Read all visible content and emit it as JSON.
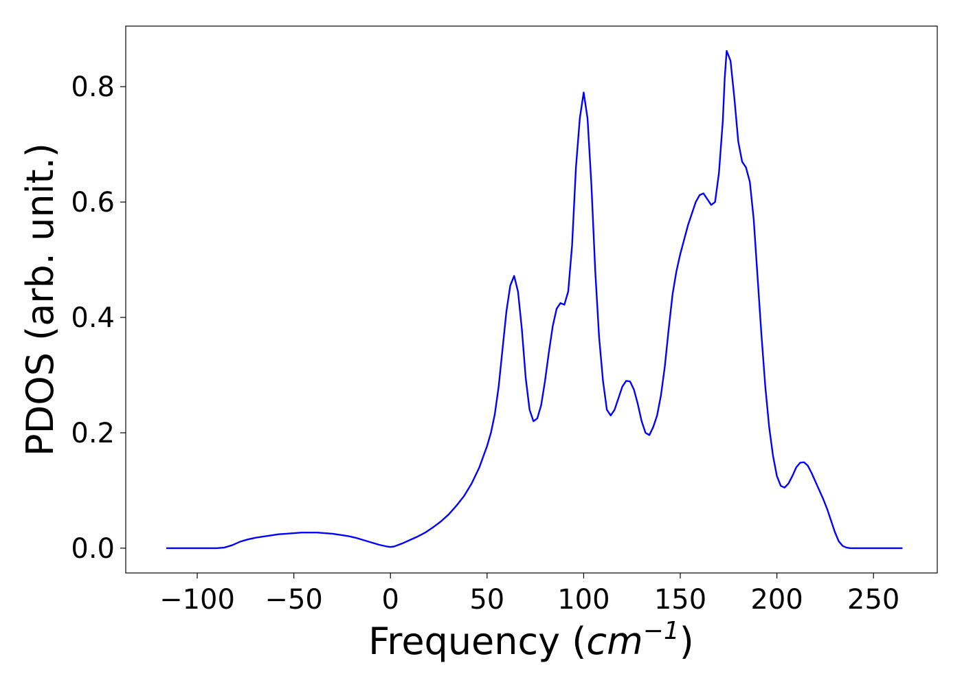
{
  "chart_data": {
    "type": "line",
    "xlabel": "Frequency (",
    "xlabel_math": "cm",
    "xlabel_exponent": "−1",
    "xlabel_close": ")",
    "ylabel": "PDOS (arb. unit.)",
    "xlim": [
      -137,
      283
    ],
    "ylim": [
      -0.043,
      0.905
    ],
    "xticks": [
      -100,
      -50,
      0,
      50,
      100,
      150,
      200,
      250
    ],
    "xtick_labels": [
      "−100",
      "−50",
      "0",
      "50",
      "100",
      "150",
      "200",
      "250"
    ],
    "yticks": [
      0.0,
      0.2,
      0.4,
      0.6,
      0.8
    ],
    "ytick_labels": [
      "0.0",
      "0.2",
      "0.4",
      "0.6",
      "0.8"
    ],
    "grid": false,
    "line_color": "#0000ff",
    "series": [
      {
        "x": [
          -116,
          -100,
          -90,
          -86,
          -82,
          -78,
          -74,
          -70,
          -66,
          -62,
          -58,
          -54,
          -50,
          -46,
          -42,
          -38,
          -34,
          -30,
          -26,
          -22,
          -18,
          -14,
          -10,
          -6,
          -2,
          0,
          2,
          6,
          10,
          14,
          18,
          22,
          26,
          30,
          34,
          38,
          42,
          46,
          50,
          52,
          54,
          56,
          58,
          60,
          62,
          64,
          66,
          68,
          70,
          72,
          74,
          76,
          78,
          80,
          82,
          84,
          86,
          88,
          90,
          92,
          94,
          96,
          98,
          100,
          102,
          104,
          106,
          108,
          110,
          112,
          114,
          116,
          118,
          120,
          122,
          124,
          126,
          128,
          130,
          132,
          134,
          136,
          138,
          140,
          142,
          144,
          146,
          148,
          150,
          152,
          154,
          156,
          158,
          160,
          162,
          164,
          166,
          168,
          170,
          172,
          173,
          174,
          176,
          178,
          180,
          182,
          184,
          186,
          188,
          190,
          192,
          194,
          196,
          198,
          200,
          202,
          204,
          206,
          208,
          210,
          212,
          214,
          216,
          218,
          220,
          222,
          224,
          226,
          228,
          230,
          232,
          234,
          236,
          238,
          240,
          250,
          265
        ],
        "y": [
          0.0,
          0.0,
          0.0,
          0.001,
          0.005,
          0.011,
          0.015,
          0.018,
          0.02,
          0.022,
          0.024,
          0.025,
          0.026,
          0.027,
          0.027,
          0.027,
          0.026,
          0.025,
          0.023,
          0.021,
          0.018,
          0.014,
          0.01,
          0.006,
          0.003,
          0.002,
          0.003,
          0.008,
          0.014,
          0.02,
          0.027,
          0.036,
          0.046,
          0.058,
          0.073,
          0.09,
          0.112,
          0.14,
          0.177,
          0.2,
          0.232,
          0.28,
          0.345,
          0.41,
          0.455,
          0.472,
          0.445,
          0.38,
          0.295,
          0.24,
          0.22,
          0.225,
          0.248,
          0.29,
          0.34,
          0.385,
          0.415,
          0.425,
          0.422,
          0.445,
          0.525,
          0.66,
          0.745,
          0.79,
          0.745,
          0.63,
          0.48,
          0.365,
          0.29,
          0.24,
          0.23,
          0.24,
          0.26,
          0.28,
          0.29,
          0.289,
          0.275,
          0.25,
          0.22,
          0.2,
          0.196,
          0.21,
          0.23,
          0.265,
          0.315,
          0.38,
          0.44,
          0.48,
          0.51,
          0.535,
          0.56,
          0.58,
          0.6,
          0.612,
          0.615,
          0.605,
          0.595,
          0.6,
          0.65,
          0.74,
          0.815,
          0.862,
          0.845,
          0.78,
          0.705,
          0.67,
          0.66,
          0.635,
          0.57,
          0.47,
          0.37,
          0.28,
          0.21,
          0.16,
          0.125,
          0.108,
          0.105,
          0.112,
          0.125,
          0.14,
          0.148,
          0.149,
          0.143,
          0.13,
          0.115,
          0.1,
          0.085,
          0.068,
          0.048,
          0.028,
          0.012,
          0.004,
          0.001,
          0.0,
          0.0,
          0.0,
          0.0
        ]
      }
    ]
  }
}
